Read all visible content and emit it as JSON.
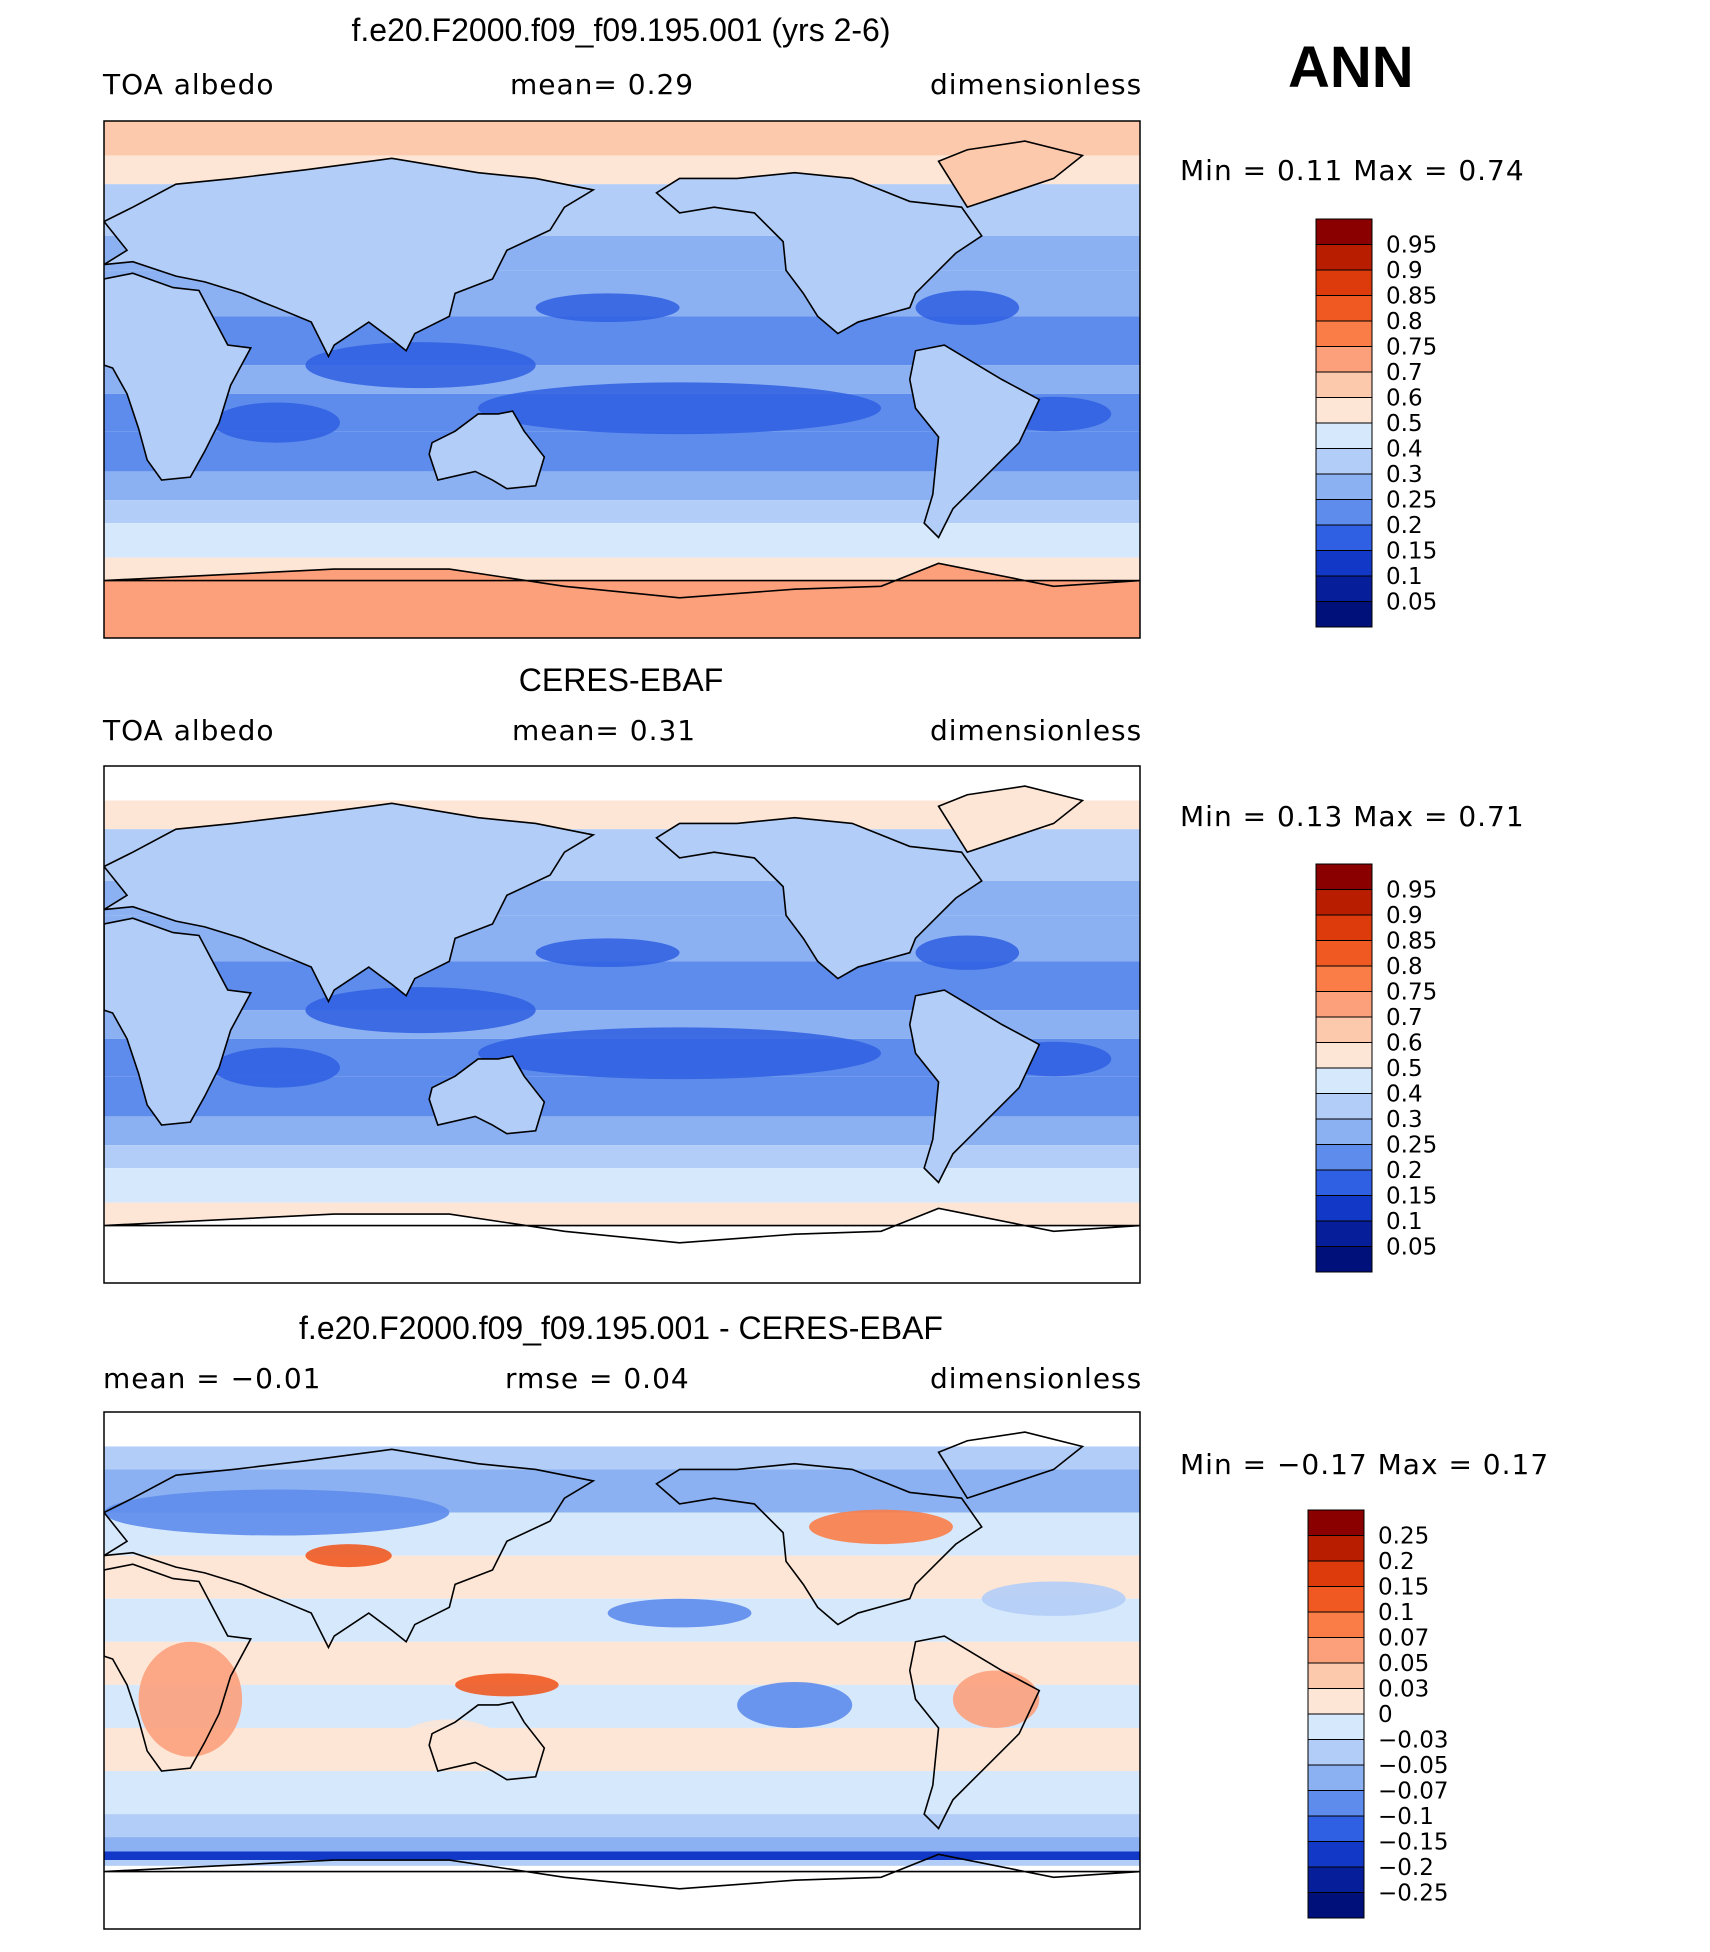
{
  "season": "ANN",
  "panels": [
    {
      "title": "f.e20.F2000.f09_f09.195.001 (yrs 2-6)",
      "left_label": "TOA albedo",
      "center_label": "mean=    0.29",
      "right_label": "dimensionless",
      "minmax": "Min =     0.11  Max =     0.74"
    },
    {
      "title": "CERES-EBAF",
      "left_label": "TOA albedo",
      "center_label": "mean=    0.31",
      "right_label": "dimensionless",
      "minmax": "Min =     0.13  Max =     0.71"
    },
    {
      "title": "f.e20.F2000.f09_f09.195.001 - CERES-EBAF",
      "left_label": "mean =   −0.01",
      "center_label": "rmse =    0.04",
      "right_label": "dimensionless",
      "minmax": "Min =   −0.17  Max =    0.17"
    }
  ],
  "chart_data": [
    {
      "type": "heatmap",
      "title": "f.e20.F2000.f09_f09.195.001 (yrs 2-6)",
      "variable": "TOA albedo",
      "units": "dimensionless",
      "mean": 0.29,
      "min": 0.11,
      "max": 0.74,
      "colorbar_levels": [
        "0.95",
        "0.9",
        "0.85",
        "0.8",
        "0.75",
        "0.7",
        "0.6",
        "0.5",
        "0.4",
        "0.3",
        "0.25",
        "0.2",
        "0.15",
        "0.1",
        "0.05"
      ],
      "colorbar_colors": [
        "#8a0000",
        "#b81d00",
        "#dd3b0c",
        "#f05a22",
        "#fa7d47",
        "#fca07c",
        "#fdc9ad",
        "#fde6d6",
        "#d6e8fb",
        "#b2cdf7",
        "#8bb1f2",
        "#5e8cec",
        "#2f5fe2",
        "#1238c8",
        "#061e9a",
        "#00107a"
      ],
      "mean_zonal_profile_desc": "tropics ~0.2, midlatitudes ~0.35, polar ~0.6"
    },
    {
      "type": "heatmap",
      "title": "CERES-EBAF",
      "variable": "TOA albedo",
      "units": "dimensionless",
      "mean": 0.31,
      "min": 0.13,
      "max": 0.71,
      "colorbar_levels": [
        "0.95",
        "0.9",
        "0.85",
        "0.8",
        "0.75",
        "0.7",
        "0.6",
        "0.5",
        "0.4",
        "0.3",
        "0.25",
        "0.2",
        "0.15",
        "0.1",
        "0.05"
      ],
      "colorbar_colors": [
        "#8a0000",
        "#b81d00",
        "#dd3b0c",
        "#f05a22",
        "#fa7d47",
        "#fca07c",
        "#fdc9ad",
        "#fde6d6",
        "#d6e8fb",
        "#b2cdf7",
        "#8bb1f2",
        "#5e8cec",
        "#2f5fe2",
        "#1238c8",
        "#061e9a",
        "#00107a"
      ]
    },
    {
      "type": "heatmap",
      "title": "f.e20.F2000.f09_f09.195.001 - CERES-EBAF",
      "units": "dimensionless",
      "mean": -0.01,
      "rmse": 0.04,
      "min": -0.17,
      "max": 0.17,
      "colorbar_levels": [
        "0.25",
        "0.2",
        "0.15",
        "0.1",
        "0.07",
        "0.05",
        "0.03",
        "0",
        "−0.03",
        "−0.05",
        "−0.07",
        "−0.1",
        "−0.15",
        "−0.2",
        "−0.25"
      ],
      "colorbar_colors": [
        "#8a0000",
        "#b81d00",
        "#dd3b0c",
        "#f05a22",
        "#fa7d47",
        "#fca07c",
        "#fdc9ad",
        "#fde6d6",
        "#d6e8fb",
        "#b2cdf7",
        "#8bb1f2",
        "#5e8cec",
        "#2f5fe2",
        "#1238c8",
        "#061e9a",
        "#00107a"
      ]
    }
  ]
}
